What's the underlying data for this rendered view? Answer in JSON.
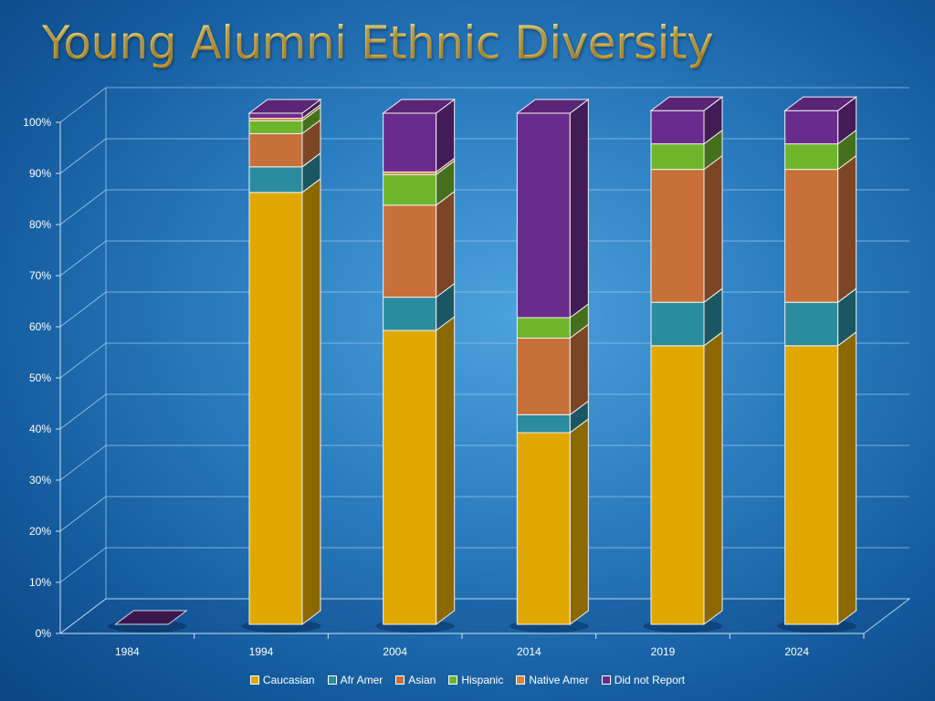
{
  "title": "Young Alumni Ethnic Diversity",
  "chart_data": {
    "type": "bar",
    "stacked": true,
    "percent_stacked": true,
    "three_d": true,
    "title": "Young Alumni Ethnic Diversity",
    "categories": [
      "1984",
      "1994",
      "2004",
      "2014",
      "2019",
      "2024"
    ],
    "ylim": [
      0,
      100
    ],
    "yticks": [
      "0%",
      "10%",
      "20%",
      "30%",
      "40%",
      "50%",
      "60%",
      "70%",
      "80%",
      "90%",
      "100%"
    ],
    "grid": true,
    "legend_position": "bottom",
    "series": [
      {
        "name": "Caucasian",
        "color": "#e0a800",
        "values": [
          0,
          84.5,
          57.5,
          37.5,
          54.5,
          54.5
        ]
      },
      {
        "name": "Afr Amer",
        "color": "#2a8c9e",
        "values": [
          0,
          5,
          6.5,
          3.5,
          8.5,
          8.5
        ]
      },
      {
        "name": "Asian",
        "color": "#c8703a",
        "values": [
          0,
          6.5,
          18,
          15,
          26,
          26
        ]
      },
      {
        "name": "Hispanic",
        "color": "#6db52b",
        "values": [
          0,
          2.5,
          6,
          4,
          5,
          5
        ]
      },
      {
        "name": "Native Amer",
        "color": "#d9843a",
        "values": [
          0,
          0.5,
          0.5,
          0,
          0,
          0
        ]
      },
      {
        "name": "Did not Report",
        "color": "#6a2c8c",
        "values": [
          0,
          1,
          11.5,
          40,
          6.5,
          6.5
        ]
      }
    ]
  }
}
